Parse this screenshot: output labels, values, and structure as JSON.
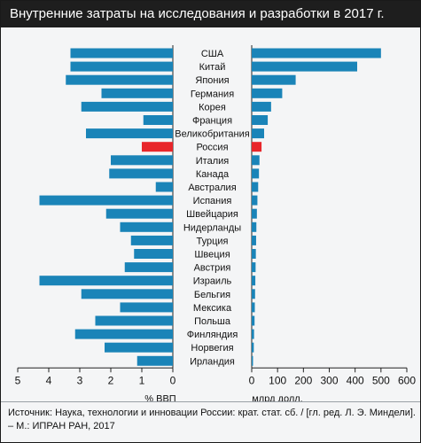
{
  "title": "Внутренние затраты на исследования и разработки в 2017 г.",
  "source_text": "Источник: Наука, технологии и инновации России: крат. стат. сб. / [гл. ред. Л. Э. Миндели]. – М.: ИПРАН РАН, 2017",
  "colors": {
    "bar": "#1a84b8",
    "highlight": "#e8262b",
    "background": "#f4f5f6",
    "title_bar": "#1e1e1e"
  },
  "chart_data": [
    {
      "type": "bar",
      "orientation": "horizontal",
      "direction": "right-to-left",
      "xlabel": "% ВВП",
      "xlim": [
        0,
        5
      ],
      "ticks": [
        5,
        4,
        3,
        2,
        1,
        0
      ],
      "categories": [
        "США",
        "Китай",
        "Япония",
        "Германия",
        "Корея",
        "Франция",
        "Великобритания",
        "Россия",
        "Италия",
        "Канада",
        "Австралия",
        "Испания",
        "Швейцария",
        "Нидерланды",
        "Турция",
        "Швеция",
        "Австрия",
        "Израиль",
        "Бельгия",
        "Мексика",
        "Польша",
        "Финляндия",
        "Норвегия",
        "Ирландия"
      ],
      "values": [
        3.3,
        3.3,
        3.45,
        2.3,
        2.95,
        0.95,
        2.8,
        1.0,
        2.0,
        2.05,
        0.55,
        4.3,
        2.15,
        1.7,
        1.35,
        1.25,
        1.55,
        4.3,
        2.95,
        1.7,
        2.5,
        3.15,
        2.2,
        1.15
      ],
      "highlight": "Россия"
    },
    {
      "type": "bar",
      "orientation": "horizontal",
      "xlabel": "млрд долл.",
      "xlim": [
        0,
        600
      ],
      "ticks": [
        0,
        100,
        200,
        300,
        400,
        500,
        600
      ],
      "categories": [
        "США",
        "Китай",
        "Япония",
        "Германия",
        "Корея",
        "Франция",
        "Великобритания",
        "Россия",
        "Италия",
        "Канада",
        "Австралия",
        "Испания",
        "Швейцария",
        "Нидерланды",
        "Турция",
        "Швеция",
        "Австрия",
        "Израиль",
        "Бельгия",
        "Мексика",
        "Польша",
        "Финляндия",
        "Норвегия",
        "Ирландия"
      ],
      "values": [
        500,
        408,
        170,
        118,
        75,
        62,
        48,
        38,
        30,
        28,
        25,
        22,
        20,
        18,
        17,
        16,
        15,
        14,
        13,
        12,
        11,
        9,
        8,
        5
      ],
      "highlight": "Россия"
    }
  ]
}
